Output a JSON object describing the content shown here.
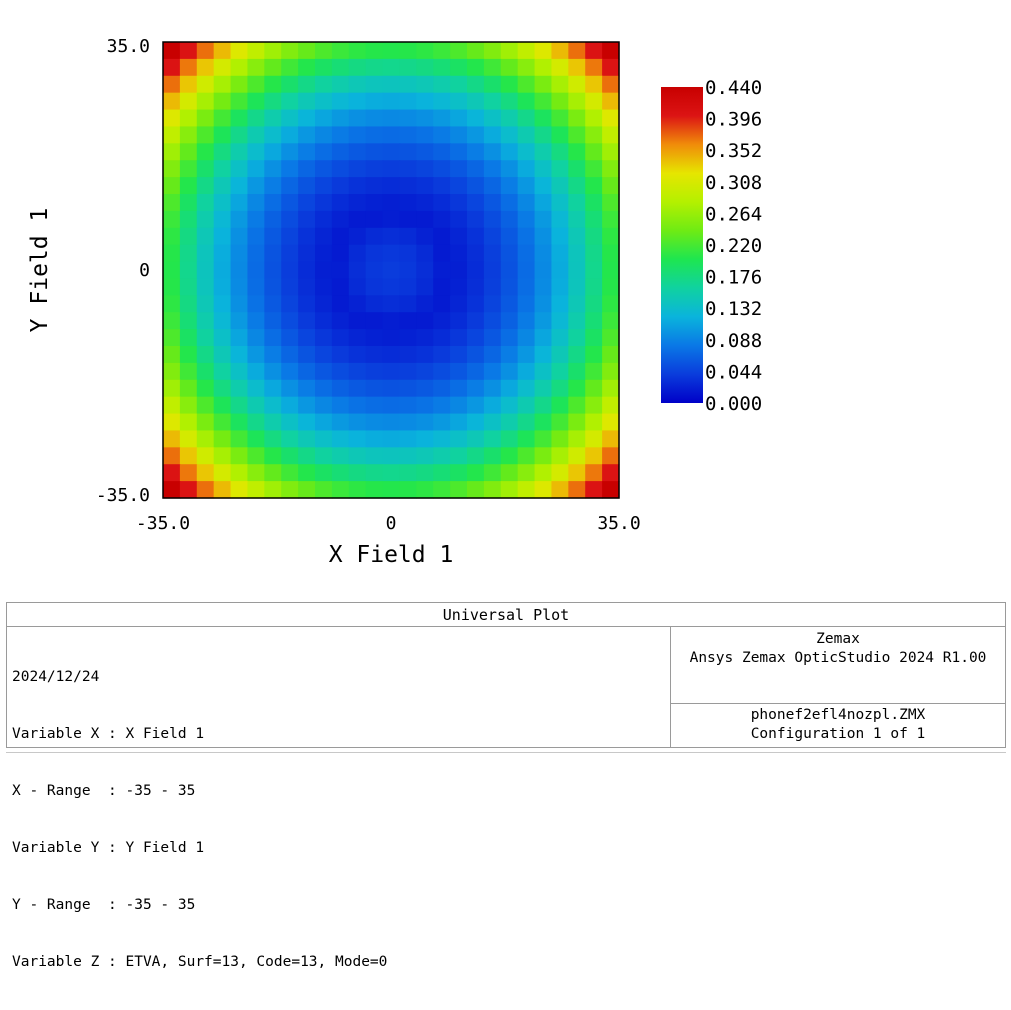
{
  "chart_data": {
    "type": "heatmap",
    "xlabel": "X Field 1",
    "ylabel": "Y Field 1",
    "x_range": [
      -35.0,
      35.0
    ],
    "y_range": [
      -35.0,
      35.0
    ],
    "x_tick_labels": [
      "-35.0",
      "0",
      "35.0"
    ],
    "y_tick_labels": [
      "35.0",
      "0",
      "-35.0"
    ],
    "grid_size": [
      27,
      27
    ],
    "value_function": "approximately radial: z ≈ 0.22·(r/35)^2 with center ≈ 0.04 and corner cells at 0.44",
    "center_value": 0.04,
    "edge_midpoint_value": 0.22,
    "corner_value": 0.44,
    "colorbar": {
      "min": 0.0,
      "max": 0.44,
      "tick_labels": [
        "0.440",
        "0.396",
        "0.352",
        "0.308",
        "0.264",
        "0.220",
        "0.176",
        "0.132",
        "0.088",
        "0.044",
        "0.000"
      ],
      "colors": [
        "#0000c8",
        "#0a3cdc",
        "#0a78e6",
        "#0ab4dc",
        "#10d2a0",
        "#1ee650",
        "#6eeb14",
        "#b4f000",
        "#e6e600",
        "#f08c0a",
        "#dc1414",
        "#c80000"
      ]
    },
    "grid": false,
    "legend": "right"
  },
  "info": {
    "title": "Universal Plot",
    "left_lines": [
      "2024/12/24",
      "Variable X : X Field 1",
      "X - Range  : -35 - 35",
      "Variable Y : Y Field 1",
      "Y - Range  : -35 - 35",
      "Variable Z : ETVA, Surf=13, Code=13, Mode=0"
    ],
    "right_top_lines": [
      "Zemax",
      "Ansys Zemax OpticStudio 2024 R1.00"
    ],
    "right_bottom_lines": [
      "phonef2efl4nozpl.ZMX",
      "Configuration 1 of 1"
    ]
  }
}
